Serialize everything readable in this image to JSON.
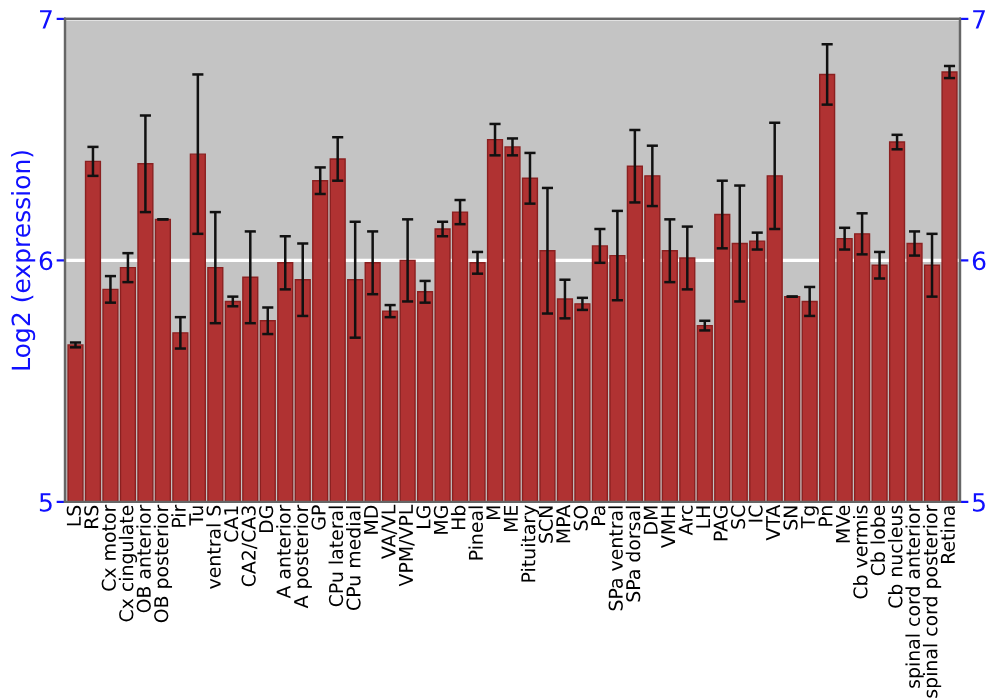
{
  "chart_data": {
    "type": "bar",
    "ylabel": "Log2 (expression)",
    "categories": [
      "LS",
      "RS",
      "Cx motor",
      "Cx cingulate",
      "OB anterior",
      "OB posterior",
      "Pir",
      "Tu",
      "ventral S",
      "CA1",
      "CA2/CA3",
      "DG",
      "A anterior",
      "A posterior",
      "GP",
      "CPu lateral",
      "CPu medial",
      "MD",
      "VA/VL",
      "VPM/VPL",
      "LG",
      "MG",
      "Hb",
      "Pineal",
      "M",
      "ME",
      "Pituitary",
      "SCN",
      "MPA",
      "SO",
      "Pa",
      "SPa ventral",
      "SPa dorsal",
      "DM",
      "VMH",
      "Arc",
      "LH",
      "PAG",
      "SC",
      "IC",
      "VTA",
      "SN",
      "Tg",
      "Pn",
      "MVe",
      "Cb vermis",
      "Cb lobe",
      "Cb nucleus",
      "spinal cord anterior",
      "spinal cord posterior",
      "Retina"
    ],
    "values": [
      5.65,
      6.41,
      5.88,
      5.97,
      6.4,
      6.17,
      5.7,
      6.44,
      5.97,
      5.83,
      5.93,
      5.75,
      5.99,
      5.92,
      6.33,
      6.42,
      5.92,
      5.99,
      5.79,
      6.0,
      5.87,
      6.13,
      6.2,
      5.99,
      6.5,
      6.47,
      6.34,
      6.04,
      5.84,
      5.82,
      6.06,
      6.02,
      6.39,
      6.35,
      6.04,
      6.01,
      5.73,
      6.19,
      6.07,
      6.08,
      6.35,
      5.85,
      5.83,
      6.77,
      6.09,
      6.11,
      5.98,
      6.49,
      6.07,
      5.98,
      6.78
    ],
    "errors": [
      0.01,
      0.06,
      0.055,
      0.06,
      0.2,
      null,
      0.065,
      0.33,
      0.23,
      0.02,
      0.19,
      0.055,
      0.11,
      0.15,
      0.055,
      0.09,
      0.24,
      0.13,
      0.025,
      0.17,
      0.045,
      0.03,
      0.05,
      0.045,
      0.065,
      0.035,
      0.105,
      0.26,
      0.08,
      0.025,
      0.07,
      0.185,
      0.15,
      0.125,
      0.13,
      0.13,
      0.02,
      0.14,
      0.24,
      0.035,
      0.22,
      null,
      0.06,
      0.125,
      0.045,
      0.085,
      0.055,
      0.03,
      0.05,
      0.13,
      0.025
    ],
    "color": "#b03232",
    "ylim": [
      5,
      7
    ],
    "yticks": [
      5,
      6,
      7
    ],
    "y2lim": [
      5,
      7
    ],
    "y2ticks": [
      5,
      6,
      7
    ],
    "grid": "y"
  }
}
